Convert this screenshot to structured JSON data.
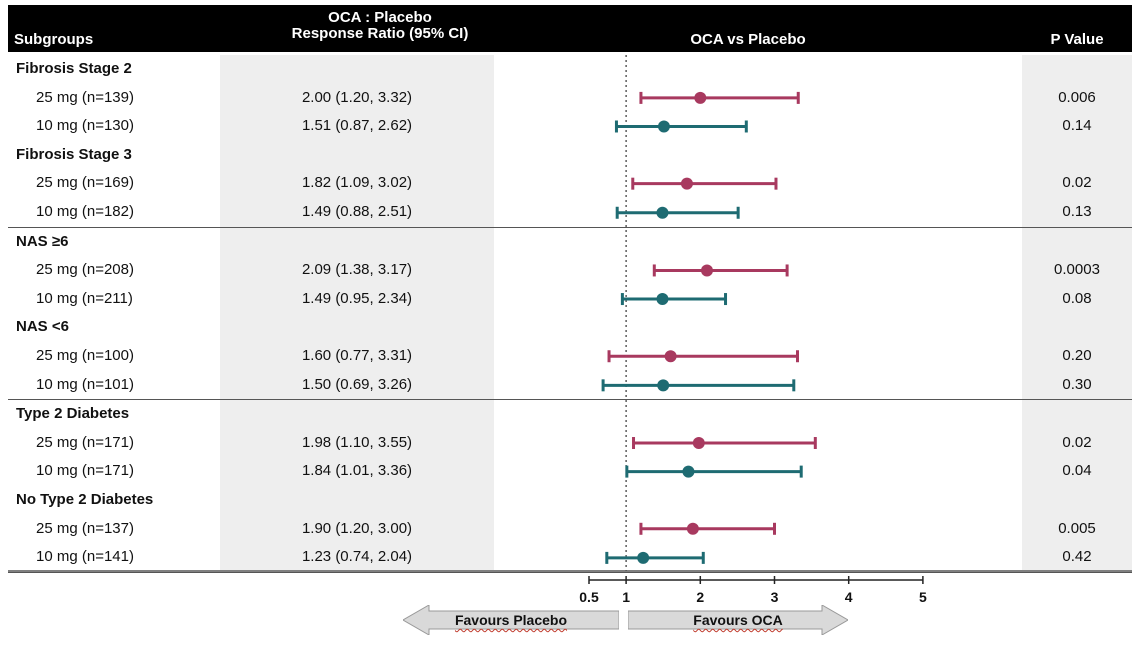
{
  "headers": {
    "subgroups": "Subgroups",
    "ratio_line1": "OCA : Placebo",
    "ratio_line2": "Response Ratio (95% CI)",
    "forest": "OCA vs Placebo",
    "pvalue": "P Value"
  },
  "colors": {
    "dose25": "#a8395f",
    "dose10": "#1e6b72",
    "header_bg": "#000000",
    "shade": "#eeeeee"
  },
  "chart_data": {
    "type": "forest",
    "xlim": [
      0.5,
      5
    ],
    "ticks": [
      "0.5",
      "1",
      "2",
      "3",
      "4",
      "5"
    ],
    "tick_values": [
      0.5,
      1,
      2,
      3,
      4,
      5
    ],
    "reference_line": 1,
    "arrows": {
      "left": "Favours Placebo",
      "right": "Favours OCA"
    },
    "groups": [
      {
        "name": "Fibrosis Stage 2",
        "rows": [
          {
            "label": "25 mg (n=139)",
            "ratio_text": "2.00 (1.20, 3.32)",
            "ratio": 2.0,
            "lo": 1.2,
            "hi": 3.32,
            "p": "0.006",
            "dose": "25"
          },
          {
            "label": "10 mg (n=130)",
            "ratio_text": "1.51 (0.87, 2.62)",
            "ratio": 1.51,
            "lo": 0.87,
            "hi": 2.62,
            "p": "0.14",
            "dose": "10"
          }
        ]
      },
      {
        "name": "Fibrosis Stage 3",
        "rows": [
          {
            "label": "25 mg (n=169)",
            "ratio_text": "1.82 (1.09, 3.02)",
            "ratio": 1.82,
            "lo": 1.09,
            "hi": 3.02,
            "p": "0.02",
            "dose": "25"
          },
          {
            "label": "10 mg (n=182)",
            "ratio_text": "1.49 (0.88, 2.51)",
            "ratio": 1.49,
            "lo": 0.88,
            "hi": 2.51,
            "p": "0.13",
            "dose": "10"
          }
        ]
      },
      {
        "name": "NAS ≥6",
        "rows": [
          {
            "label": "25 mg (n=208)",
            "ratio_text": "2.09 (1.38, 3.17)",
            "ratio": 2.09,
            "lo": 1.38,
            "hi": 3.17,
            "p": "0.0003",
            "dose": "25"
          },
          {
            "label": "10 mg (n=211)",
            "ratio_text": "1.49 (0.95, 2.34)",
            "ratio": 1.49,
            "lo": 0.95,
            "hi": 2.34,
            "p": "0.08",
            "dose": "10"
          }
        ]
      },
      {
        "name": "NAS <6",
        "rows": [
          {
            "label": "25 mg (n=100)",
            "ratio_text": "1.60 (0.77, 3.31)",
            "ratio": 1.6,
            "lo": 0.77,
            "hi": 3.31,
            "p": "0.20",
            "dose": "25"
          },
          {
            "label": "10 mg (n=101)",
            "ratio_text": "1.50 (0.69, 3.26)",
            "ratio": 1.5,
            "lo": 0.69,
            "hi": 3.26,
            "p": "0.30",
            "dose": "10"
          }
        ]
      },
      {
        "name": "Type 2 Diabetes",
        "rows": [
          {
            "label": "25 mg (n=171)",
            "ratio_text": "1.98 (1.10, 3.55)",
            "ratio": 1.98,
            "lo": 1.1,
            "hi": 3.55,
            "p": "0.02",
            "dose": "25"
          },
          {
            "label": "10 mg (n=171)",
            "ratio_text": "1.84 (1.01, 3.36)",
            "ratio": 1.84,
            "lo": 1.01,
            "hi": 3.36,
            "p": "0.04",
            "dose": "10"
          }
        ]
      },
      {
        "name": "No Type 2 Diabetes",
        "rows": [
          {
            "label": "25 mg (n=137)",
            "ratio_text": "1.90 (1.20, 3.00)",
            "ratio": 1.9,
            "lo": 1.2,
            "hi": 3.0,
            "p": "0.005",
            "dose": "25"
          },
          {
            "label": "10 mg (n=141)",
            "ratio_text": "1.23 (0.74, 2.04)",
            "ratio": 1.23,
            "lo": 0.74,
            "hi": 2.04,
            "p": "0.42",
            "dose": "10"
          }
        ]
      }
    ]
  }
}
